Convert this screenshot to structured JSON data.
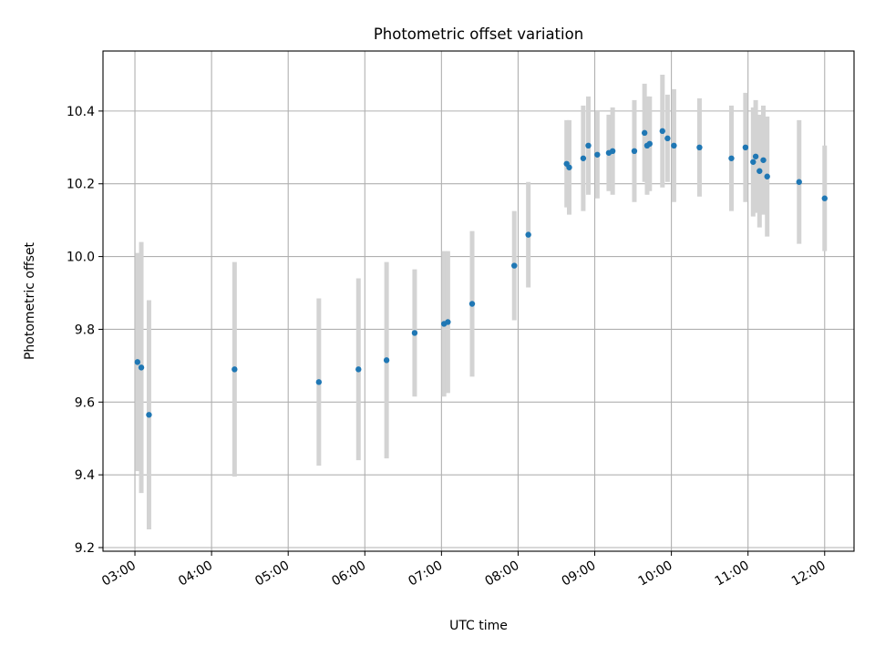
{
  "chart_data": {
    "type": "scatter",
    "title": "Photometric offset variation",
    "xlabel": "UTC time",
    "ylabel": "Photometric offset",
    "grid": true,
    "xlim": [
      "02:35",
      "12:23"
    ],
    "ylim": [
      9.19,
      10.565
    ],
    "x_ticks": [
      "03:00",
      "04:00",
      "05:00",
      "06:00",
      "07:00",
      "08:00",
      "09:00",
      "10:00",
      "11:00",
      "12:00"
    ],
    "y_ticks": [
      9.2,
      9.4,
      9.6,
      9.8,
      10.0,
      10.2,
      10.4
    ],
    "y_tick_labels": [
      "9.2",
      "9.4",
      "9.6",
      "9.8",
      "10.0",
      "10.2",
      "10.4"
    ],
    "marker_color": "#1f77b4",
    "errorbar_color": "#d3d3d3",
    "points": [
      {
        "x": "03:02",
        "y": 9.71,
        "err": 0.3
      },
      {
        "x": "03:05",
        "y": 9.695,
        "err": 0.345
      },
      {
        "x": "03:11",
        "y": 9.565,
        "err": 0.315
      },
      {
        "x": "04:18",
        "y": 9.69,
        "err": 0.295
      },
      {
        "x": "05:24",
        "y": 9.655,
        "err": 0.23
      },
      {
        "x": "05:55",
        "y": 9.69,
        "err": 0.25
      },
      {
        "x": "06:17",
        "y": 9.715,
        "err": 0.27
      },
      {
        "x": "06:39",
        "y": 9.79,
        "err": 0.175
      },
      {
        "x": "07:02",
        "y": 9.815,
        "err": 0.2
      },
      {
        "x": "07:05",
        "y": 9.82,
        "err": 0.195
      },
      {
        "x": "07:24",
        "y": 9.87,
        "err": 0.2
      },
      {
        "x": "07:57",
        "y": 9.975,
        "err": 0.15
      },
      {
        "x": "08:08",
        "y": 10.06,
        "err": 0.145
      },
      {
        "x": "08:38",
        "y": 10.255,
        "err": 0.12
      },
      {
        "x": "08:40",
        "y": 10.245,
        "err": 0.13
      },
      {
        "x": "08:51",
        "y": 10.27,
        "err": 0.145
      },
      {
        "x": "08:55",
        "y": 10.305,
        "err": 0.135
      },
      {
        "x": "09:02",
        "y": 10.28,
        "err": 0.12
      },
      {
        "x": "09:11",
        "y": 10.285,
        "err": 0.105
      },
      {
        "x": "09:14",
        "y": 10.29,
        "err": 0.12
      },
      {
        "x": "09:31",
        "y": 10.29,
        "err": 0.14
      },
      {
        "x": "09:39",
        "y": 10.34,
        "err": 0.135
      },
      {
        "x": "09:41",
        "y": 10.305,
        "err": 0.135
      },
      {
        "x": "09:43",
        "y": 10.31,
        "err": 0.13
      },
      {
        "x": "09:53",
        "y": 10.345,
        "err": 0.155
      },
      {
        "x": "09:57",
        "y": 10.325,
        "err": 0.12
      },
      {
        "x": "10:02",
        "y": 10.305,
        "err": 0.155
      },
      {
        "x": "10:22",
        "y": 10.3,
        "err": 0.135
      },
      {
        "x": "10:47",
        "y": 10.27,
        "err": 0.145
      },
      {
        "x": "10:58",
        "y": 10.3,
        "err": 0.15
      },
      {
        "x": "11:04",
        "y": 10.26,
        "err": 0.15
      },
      {
        "x": "11:06",
        "y": 10.275,
        "err": 0.155
      },
      {
        "x": "11:09",
        "y": 10.235,
        "err": 0.155
      },
      {
        "x": "11:12",
        "y": 10.265,
        "err": 0.15
      },
      {
        "x": "11:15",
        "y": 10.22,
        "err": 0.165
      },
      {
        "x": "11:40",
        "y": 10.205,
        "err": 0.17
      },
      {
        "x": "12:00",
        "y": 10.16,
        "err": 0.145
      }
    ]
  }
}
